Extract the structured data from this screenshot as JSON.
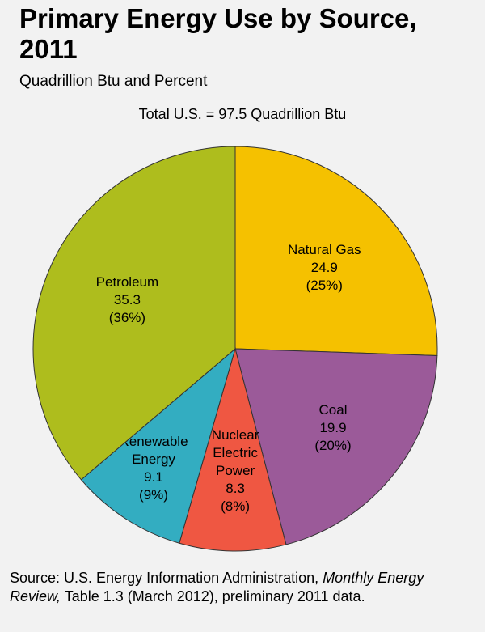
{
  "title": "Primary Energy Use by Source, 2011",
  "subtitle": "Quadrillion Btu and Percent",
  "total_note": "Total U.S. = 97.5 Quadrillion Btu",
  "source": {
    "prefix": "Source: U.S. Energy Information Administration, ",
    "publication": "Monthly Energy Review,",
    "suffix": " Table 1.3 (March 2012), preliminary 2011 data."
  },
  "chart_data": {
    "type": "pie",
    "title": "Primary Energy Use by Source, 2011",
    "subtitle": "Quadrillion Btu and Percent",
    "total": 97.5,
    "slices": [
      {
        "label": [
          "Natural Gas"
        ],
        "value": 24.9,
        "value_text": "24.9",
        "percent_text": "(25%)",
        "color": "#f5c100"
      },
      {
        "label": [
          "Coal"
        ],
        "value": 19.9,
        "value_text": "19.9",
        "percent_text": "(20%)",
        "color": "#9b5a99"
      },
      {
        "label": [
          "Nuclear",
          "Electric",
          "Power"
        ],
        "value": 8.3,
        "value_text": "8.3",
        "percent_text": "(8%)",
        "color": "#ef5742"
      },
      {
        "label": [
          "Renewable",
          "Energy"
        ],
        "value": 9.1,
        "value_text": "9.1",
        "percent_text": "(9%)",
        "color": "#33adc1"
      },
      {
        "label": [
          "Petroleum"
        ],
        "value": 35.3,
        "value_text": "35.3",
        "percent_text": "(36%)",
        "color": "#aebd1d"
      }
    ]
  }
}
